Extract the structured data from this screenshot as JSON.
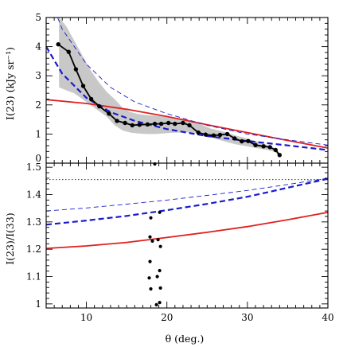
{
  "chart_data": [
    {
      "type": "line",
      "panel": "top",
      "xlabel": "θ (deg.)",
      "ylabel": "I(23) (kJy sr⁻¹)",
      "xlim": [
        5,
        40
      ],
      "ylim": [
        0,
        5
      ],
      "x_ticks": [
        10,
        20,
        30,
        40
      ],
      "y_ticks": [
        0,
        1,
        2,
        3,
        4,
        5
      ],
      "y_tick_labels": [
        "0",
        "1",
        "2",
        "3",
        "4",
        "5"
      ],
      "grid": false,
      "colors": {
        "data": "#000000",
        "band": "#c8c8c8",
        "model_red": "#e02020",
        "model_blue": "#1a1acc"
      },
      "band": {
        "x": [
          6.6,
          7.5,
          8.5,
          9.5,
          10.5,
          11.5,
          12.5,
          13.5,
          14.5,
          15.5,
          16.5,
          17.5,
          18.5,
          19.5,
          20.5,
          21.5,
          22.5,
          23.5,
          24.5,
          25.5,
          26.5,
          27.5,
          28.5,
          29.5,
          30.5,
          31.5,
          32.5,
          33.5,
          34.0
        ],
        "upper": [
          5.0,
          4.7,
          4.2,
          3.7,
          3.2,
          2.8,
          2.45,
          2.2,
          1.9,
          1.75,
          1.68,
          1.65,
          1.63,
          1.6,
          1.58,
          1.55,
          1.5,
          1.42,
          1.3,
          1.18,
          1.12,
          1.05,
          0.95,
          0.88,
          0.8,
          0.72,
          0.62,
          0.5,
          0.35
        ],
        "lower": [
          2.6,
          2.5,
          2.4,
          2.2,
          2.0,
          1.8,
          1.6,
          1.3,
          1.12,
          1.05,
          1.02,
          1.0,
          1.0,
          1.02,
          1.04,
          1.05,
          1.06,
          1.05,
          0.98,
          0.88,
          0.8,
          0.72,
          0.65,
          0.6,
          0.55,
          0.5,
          0.45,
          0.38,
          0.2
        ]
      },
      "series": [
        {
          "style": "data",
          "x": [
            6.5,
            7.8,
            8.7,
            9.6,
            10.6,
            11.6,
            12.8,
            13.8,
            14.8,
            15.7,
            16.6,
            17.6,
            18.5,
            19.3,
            20.2,
            21.0,
            22.0,
            22.8,
            23.9,
            24.8,
            25.8,
            26.6,
            27.5,
            28.4,
            29.3,
            30.1,
            31.0,
            32.0,
            32.8,
            33.5,
            34.0
          ],
          "y": [
            4.08,
            3.82,
            3.22,
            2.65,
            2.2,
            1.95,
            1.7,
            1.45,
            1.38,
            1.3,
            1.32,
            1.33,
            1.35,
            1.35,
            1.38,
            1.35,
            1.38,
            1.3,
            1.05,
            0.98,
            0.95,
            0.97,
            1.0,
            0.85,
            0.75,
            0.76,
            0.62,
            0.58,
            0.55,
            0.45,
            0.28
          ]
        },
        {
          "style": "model_red",
          "x": [
            5,
            10,
            15,
            20,
            25,
            30,
            35,
            40
          ],
          "y": [
            2.18,
            2.05,
            1.85,
            1.6,
            1.32,
            1.05,
            0.78,
            0.52
          ]
        },
        {
          "style": "model_blue_thick_dashed",
          "x": [
            5,
            7,
            10,
            13,
            16,
            20,
            25,
            30,
            35,
            40
          ],
          "y": [
            4.0,
            3.07,
            2.24,
            1.75,
            1.45,
            1.17,
            0.93,
            0.76,
            0.61,
            0.45
          ]
        },
        {
          "style": "model_blue_thin_dashed",
          "x": [
            5,
            7,
            10,
            13,
            16,
            20,
            25,
            30,
            35,
            40
          ],
          "y": [
            6.0,
            4.6,
            3.4,
            2.6,
            2.1,
            1.7,
            1.3,
            1.0,
            0.8,
            0.62
          ]
        }
      ]
    },
    {
      "type": "scatter",
      "panel": "bottom",
      "xlabel": "θ (deg.)",
      "ylabel": "I(23)/I(33)",
      "xlim": [
        5,
        40
      ],
      "ylim": [
        0.985,
        1.515
      ],
      "x_ticks": [
        10,
        20,
        30,
        40
      ],
      "x_tick_labels": [
        "10",
        "20",
        "30",
        "40"
      ],
      "y_ticks": [
        1.0,
        1.1,
        1.2,
        1.3,
        1.4,
        1.5
      ],
      "y_tick_labels": [
        "1",
        "1.1",
        "1.2",
        "1.3",
        "1.4",
        "1.5"
      ],
      "grid": false,
      "series": [
        {
          "style": "points",
          "x": [
            18.5,
            19.1,
            18.0,
            18.9,
            17.9,
            18.2,
            19.2,
            17.9,
            19.1,
            18.8,
            17.8,
            19.2,
            18.0,
            18.7,
            19.1
          ],
          "y": [
            1.512,
            1.335,
            1.315,
            1.235,
            1.245,
            1.23,
            1.21,
            1.155,
            1.122,
            1.1,
            1.095,
            1.058,
            1.055,
            0.997,
            1.005
          ]
        },
        {
          "style": "reference_dotted",
          "x": [
            5,
            40
          ],
          "y": [
            1.455,
            1.455
          ]
        },
        {
          "style": "model_red",
          "x": [
            5,
            10,
            15,
            20,
            25,
            30,
            35,
            40
          ],
          "y": [
            1.203,
            1.212,
            1.225,
            1.243,
            1.262,
            1.283,
            1.308,
            1.335
          ]
        },
        {
          "style": "model_blue_thick_dashed",
          "x": [
            5,
            10,
            15,
            20,
            25,
            30,
            35,
            40
          ],
          "y": [
            1.29,
            1.305,
            1.322,
            1.343,
            1.366,
            1.392,
            1.425,
            1.458
          ]
        },
        {
          "style": "model_blue_thin_dashed",
          "x": [
            5,
            10,
            15,
            20,
            25,
            30,
            35,
            40
          ],
          "y": [
            1.34,
            1.351,
            1.365,
            1.38,
            1.397,
            1.415,
            1.437,
            1.46
          ]
        }
      ]
    }
  ]
}
